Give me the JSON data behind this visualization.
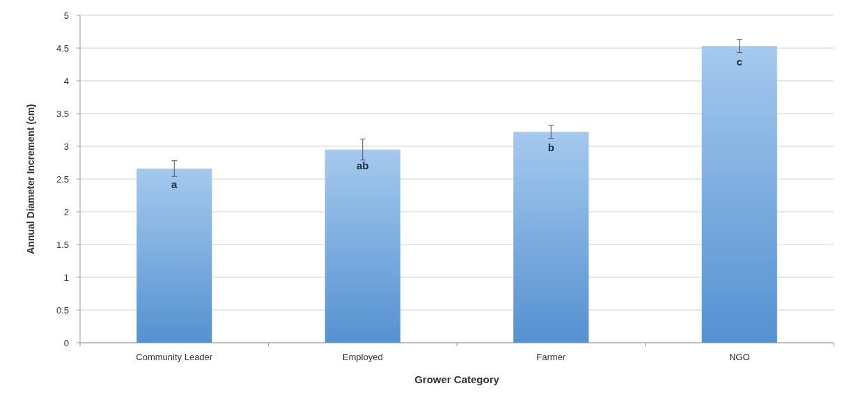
{
  "chart_data": {
    "type": "bar",
    "xlabel": "Grower Category",
    "ylabel": "Annual Diameter Increment (cm)",
    "categories": [
      "Community Leader",
      "Employed",
      "Farmer",
      "NGO"
    ],
    "values": [
      2.66,
      2.95,
      3.22,
      4.53
    ],
    "errors": [
      0.12,
      0.16,
      0.1,
      0.1
    ],
    "color": "#5b9ce0",
    "ylim": [
      0,
      5
    ],
    "yticks": [
      0,
      0.5,
      1,
      1.5,
      2,
      2.5,
      3,
      3.5,
      4,
      4.5,
      5
    ],
    "grid": "y",
    "annotations": [
      "a",
      "ab",
      "b",
      "c"
    ]
  }
}
